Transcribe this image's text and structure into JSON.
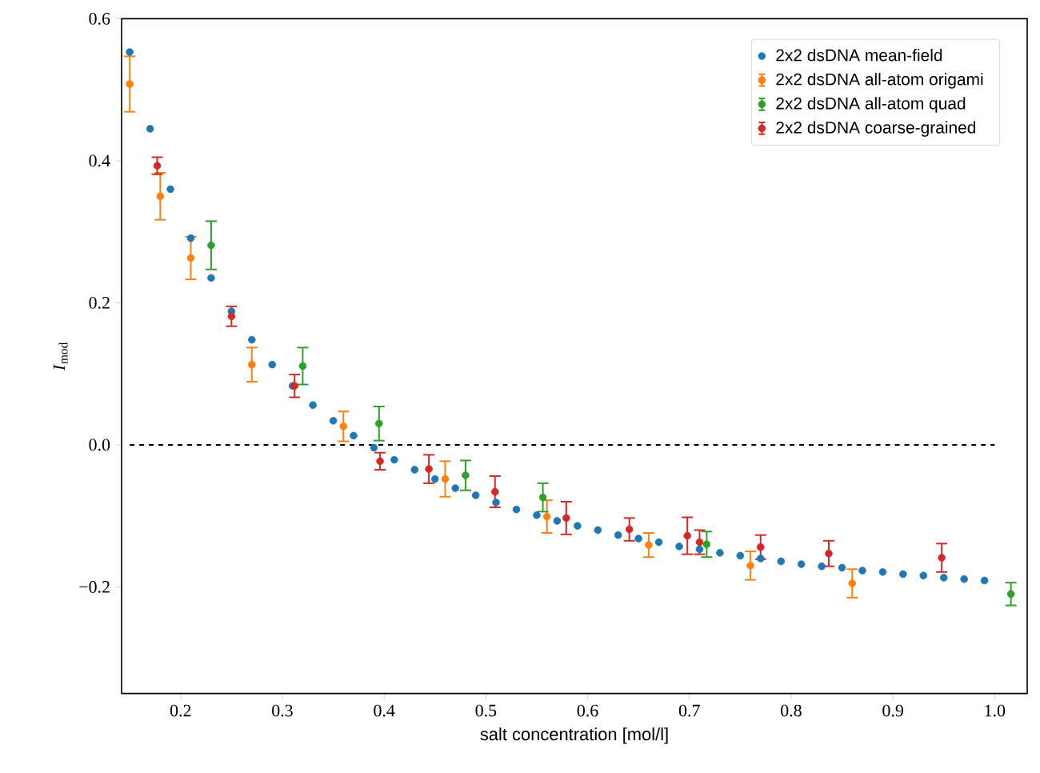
{
  "chart_data": {
    "type": "scatter",
    "xlabel": "salt concentration [mol/l]",
    "ylabel": "*I*$_{mod}$",
    "xlim": [
      0.142,
      1.032
    ],
    "ylim": [
      -0.35,
      0.6
    ],
    "xticks": [
      {
        "value": 0.2,
        "label": "0.2"
      },
      {
        "value": 0.3,
        "label": "0.3"
      },
      {
        "value": 0.4,
        "label": "0.4"
      },
      {
        "value": 0.5,
        "label": "0.5"
      },
      {
        "value": 0.6,
        "label": "0.6"
      },
      {
        "value": 0.7,
        "label": "0.7"
      },
      {
        "value": 0.8,
        "label": "0.8"
      },
      {
        "value": 0.9,
        "label": "0.9"
      },
      {
        "value": 1.0,
        "label": "1.0"
      }
    ],
    "yticks": [
      {
        "value": -0.2,
        "label": "−0.2"
      },
      {
        "value": 0,
        "label": "0.0"
      },
      {
        "value": 0.2,
        "label": "0.2"
      },
      {
        "value": 0.4,
        "label": "0.4"
      },
      {
        "value": 0.6,
        "label": "0.6"
      }
    ],
    "legend": "top right",
    "marker": "circle",
    "series": [
      {
        "name": "2x2 dsDNA mean-field",
        "color": "#1f77b4",
        "x": [
          0.15,
          0.17,
          0.19,
          0.21,
          0.23,
          0.25,
          0.27,
          0.29,
          0.31,
          0.33,
          0.35,
          0.37,
          0.39,
          0.41,
          0.43,
          0.45,
          0.47,
          0.49,
          0.51,
          0.53,
          0.55,
          0.57,
          0.59,
          0.61,
          0.63,
          0.65,
          0.67,
          0.69,
          0.71,
          0.73,
          0.75,
          0.77,
          0.79,
          0.81,
          0.83,
          0.85,
          0.87,
          0.89,
          0.91,
          0.93,
          0.95,
          0.97,
          0.99
        ],
        "values": [
          0.553,
          0.445,
          0.36,
          0.291,
          0.235,
          0.188,
          0.148,
          0.113,
          0.083,
          0.056,
          0.034,
          0.013,
          -0.004,
          -0.021,
          -0.035,
          -0.048,
          -0.061,
          -0.071,
          -0.081,
          -0.091,
          -0.099,
          -0.107,
          -0.114,
          -0.12,
          -0.127,
          -0.132,
          -0.137,
          -0.143,
          -0.147,
          -0.152,
          -0.156,
          -0.16,
          -0.164,
          -0.168,
          -0.171,
          -0.173,
          -0.177,
          -0.179,
          -0.182,
          -0.184,
          -0.187,
          -0.189,
          -0.191
        ]
      },
      {
        "name": "2x2 dsDNA all-atom origami",
        "color": "#ff7f0e",
        "x": [
          0.15,
          0.18,
          0.21,
          0.27,
          0.36,
          0.46,
          0.56,
          0.66,
          0.76,
          0.86
        ],
        "values": [
          0.508,
          0.35,
          0.263,
          0.113,
          0.026,
          -0.048,
          -0.101,
          -0.141,
          -0.17,
          -0.195
        ],
        "errors": [
          0.039,
          0.033,
          0.03,
          0.024,
          0.021,
          0.025,
          0.023,
          0.017,
          0.02,
          0.02
        ]
      },
      {
        "name": "2x2 dsDNA all-atom quad",
        "color": "#2ca02c",
        "x": [
          0.23,
          0.32,
          0.395,
          0.48,
          0.556,
          0.717,
          1.016
        ],
        "values": [
          0.281,
          0.111,
          0.03,
          -0.043,
          -0.074,
          -0.14,
          -0.21
        ],
        "errors": [
          0.034,
          0.026,
          0.024,
          0.021,
          0.02,
          0.018,
          0.016
        ]
      },
      {
        "name": "2x2 dsDNA coarse-grained",
        "color": "#d62728",
        "x": [
          0.177,
          0.25,
          0.312,
          0.396,
          0.444,
          0.509,
          0.579,
          0.641,
          0.698,
          0.71,
          0.77,
          0.837,
          0.948
        ],
        "values": [
          0.393,
          0.181,
          0.083,
          -0.023,
          -0.034,
          -0.066,
          -0.103,
          -0.119,
          -0.128,
          -0.137,
          -0.144,
          -0.153,
          -0.159
        ],
        "errors": [
          0.012,
          0.014,
          0.016,
          0.012,
          0.02,
          0.022,
          0.023,
          0.016,
          0.026,
          0.017,
          0.017,
          0.018,
          0.02
        ]
      },
      {
        "type": "line",
        "color": "#000000",
        "line_style": "dashed",
        "marker": "none",
        "x": [
          0.15,
          1.0
        ],
        "values": [
          0,
          0
        ]
      }
    ]
  }
}
